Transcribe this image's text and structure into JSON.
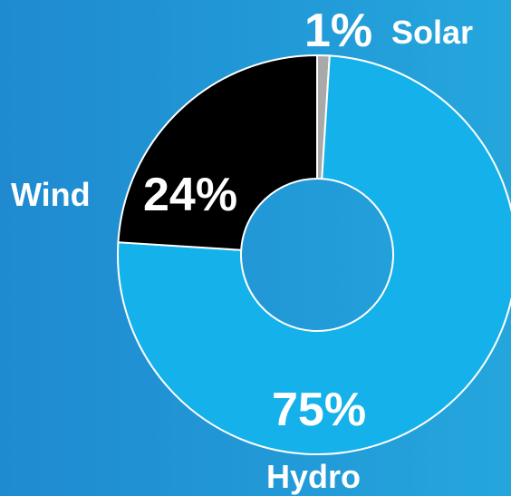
{
  "chart_data": {
    "type": "pie",
    "variant": "donut",
    "categories": [
      "Hydro",
      "Wind",
      "Solar"
    ],
    "values": [
      75,
      24,
      1
    ],
    "value_labels": [
      "75%",
      "24%",
      "1%"
    ],
    "colors": [
      "#14b1ea",
      "#000000",
      "#a9a9a9"
    ],
    "background": [
      "#1f8ad0",
      "#24a6dd"
    ],
    "stroke_color": "#ffffff",
    "legend": "none",
    "start_angle_deg": 0,
    "direction": "clockwise"
  }
}
